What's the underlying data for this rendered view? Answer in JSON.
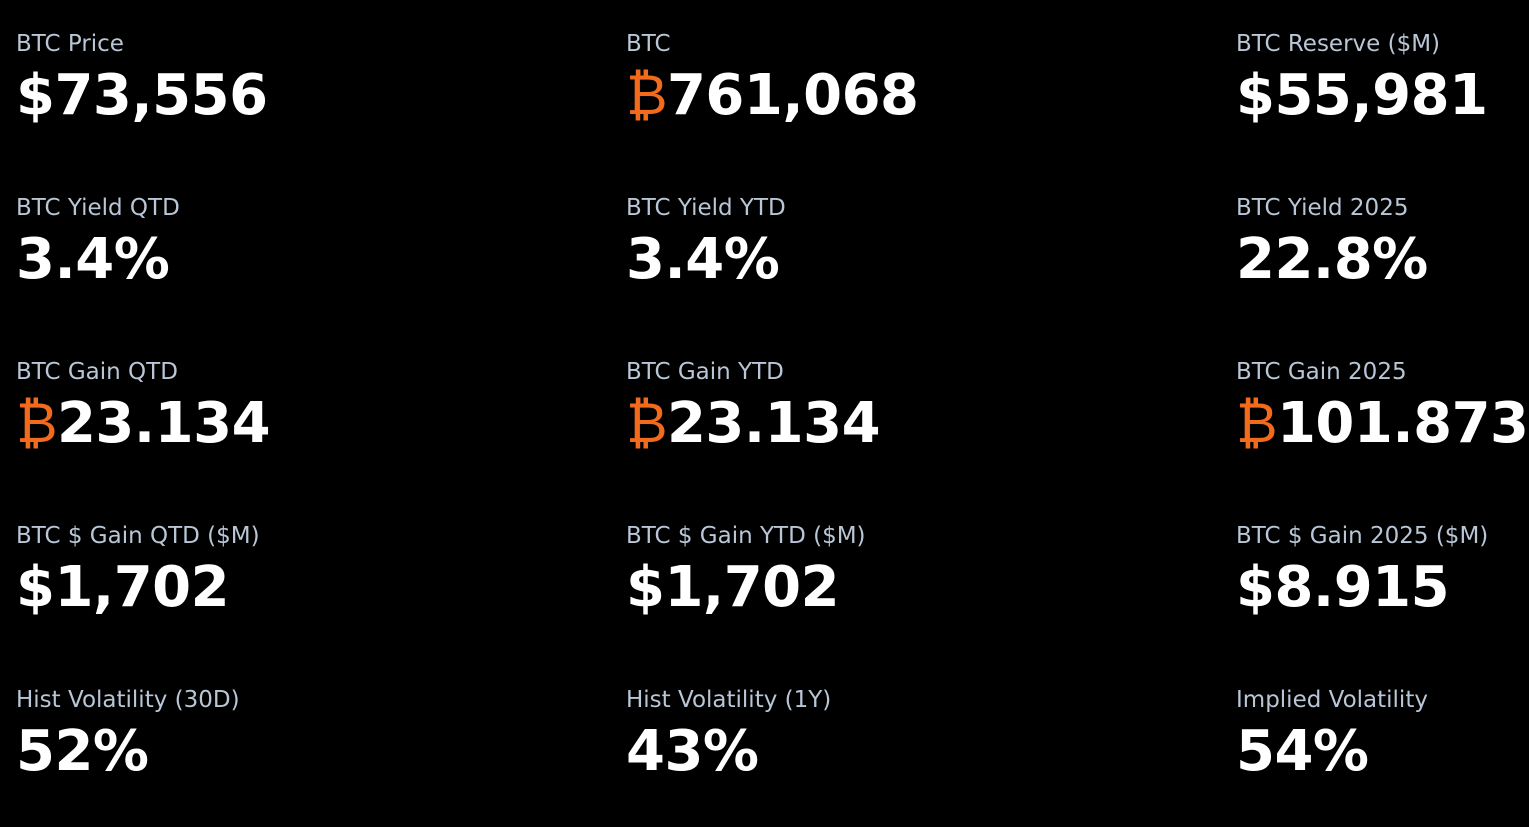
{
  "grid": {
    "rows": [
      [
        {
          "label": "BTC Price",
          "value": "$73,556"
        },
        {
          "label": "BTC",
          "symbol": "₿",
          "value": "761,068"
        },
        {
          "label": "BTC Reserve ($M)",
          "value": "$55,981"
        }
      ],
      [
        {
          "label": "BTC Yield QTD",
          "value": "3.4%"
        },
        {
          "label": "BTC Yield YTD",
          "value": "3.4%"
        },
        {
          "label": "BTC Yield 2025",
          "value": "22.8%"
        }
      ],
      [
        {
          "label": "BTC Gain QTD",
          "symbol": "₿",
          "value": "23.134"
        },
        {
          "label": "BTC Gain YTD",
          "symbol": "₿",
          "value": "23.134"
        },
        {
          "label": "BTC Gain 2025",
          "symbol": "₿",
          "value": "101.873"
        }
      ],
      [
        {
          "label": "BTC $ Gain QTD ($M)",
          "value": "$1,702"
        },
        {
          "label": "BTC $ Gain YTD ($M)",
          "value": "$1,702"
        },
        {
          "label": "BTC $ Gain 2025 ($M)",
          "value": "$8.915"
        }
      ],
      [
        {
          "label": "Hist Volatility (30D)",
          "value": "52%"
        },
        {
          "label": "Hist Volatility (1Y)",
          "value": "43%"
        },
        {
          "label": "Implied Volatility",
          "value": "54%"
        }
      ]
    ]
  }
}
